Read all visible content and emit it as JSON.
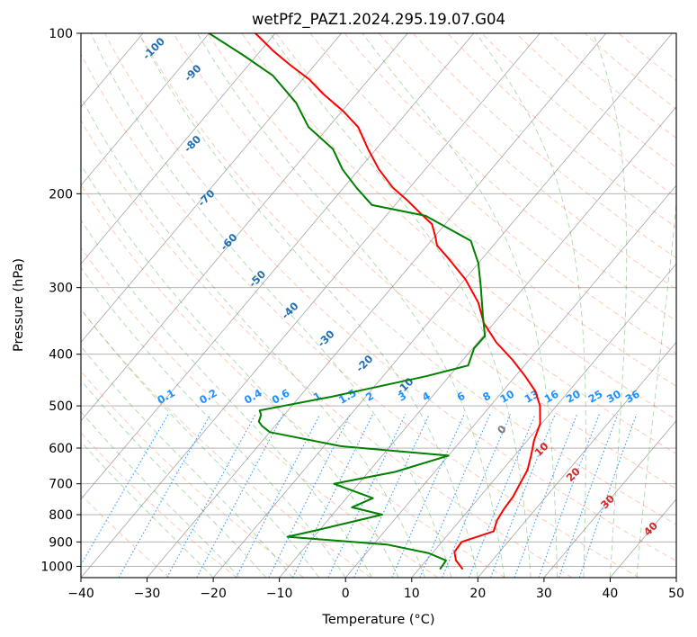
{
  "chart_data": {
    "type": "line",
    "title": "wetPf2_PAZ1.2024.295.19.07.G04",
    "xlabel": "Temperature (°C)",
    "ylabel": "Pressure (hPa)",
    "xlim": [
      -40,
      50
    ],
    "ylim": [
      1050,
      100
    ],
    "y_scale": "log",
    "skew": "skew-T log-p",
    "grid": true,
    "x_ticks": [
      "−40",
      "−30",
      "−20",
      "−10",
      "0",
      "10",
      "20",
      "30",
      "40",
      "50"
    ],
    "y_ticks": [
      "100",
      "200",
      "300",
      "400",
      "500",
      "600",
      "700",
      "800",
      "900",
      "1000"
    ],
    "colors": {
      "temperature": "#ff0000",
      "dewpoint": "#008000",
      "isotherm": "#888888",
      "dry_adiabat": "#ff7f50",
      "moist_adiabat": "#2ca02c",
      "mixing_ratio": "#1e90ff",
      "isentrope_labels": "#1f6fb4",
      "isobar": "#aaaaaa"
    },
    "series": [
      {
        "key": "temperature",
        "points": [
          [
            16.5,
            1010
          ],
          [
            14.5,
            975
          ],
          [
            13.2,
            940
          ],
          [
            13.0,
            900
          ],
          [
            16.5,
            860
          ],
          [
            15.6,
            820
          ],
          [
            15.2,
            780
          ],
          [
            15.0,
            740
          ],
          [
            14.4,
            700
          ],
          [
            13.8,
            660
          ],
          [
            12.5,
            620
          ],
          [
            11.0,
            580
          ],
          [
            9.8,
            540
          ],
          [
            7.5,
            500
          ],
          [
            5.0,
            470
          ],
          [
            1.5,
            440
          ],
          [
            -2.5,
            410
          ],
          [
            -7.2,
            380
          ],
          [
            -11.5,
            350
          ],
          [
            -15.0,
            320
          ],
          [
            -19.8,
            290
          ],
          [
            -25.0,
            265
          ],
          [
            -28.5,
            250
          ],
          [
            -30.0,
            240
          ],
          [
            -32.0,
            228
          ],
          [
            -35.0,
            218
          ],
          [
            -39.0,
            205
          ],
          [
            -42.5,
            195
          ],
          [
            -47.0,
            180
          ],
          [
            -51.2,
            165
          ],
          [
            -55.5,
            150
          ],
          [
            -59.8,
            140
          ],
          [
            -65.0,
            130
          ],
          [
            -69.0,
            122
          ],
          [
            -73.5,
            115
          ],
          [
            -78.0,
            108
          ],
          [
            -83.0,
            100
          ]
        ]
      },
      {
        "key": "dewpoint",
        "points": [
          [
            13.2,
            1010
          ],
          [
            13.0,
            975
          ],
          [
            9.5,
            945
          ],
          [
            2.0,
            910
          ],
          [
            -14.0,
            880
          ],
          [
            -10.3,
            855
          ],
          [
            -2.5,
            800
          ],
          [
            -8.0,
            775
          ],
          [
            -6.0,
            745
          ],
          [
            -13.7,
            700
          ],
          [
            -6.0,
            665
          ],
          [
            0.0,
            620
          ],
          [
            -17.5,
            595
          ],
          [
            -30.0,
            560
          ],
          [
            -32.0,
            545
          ],
          [
            -33.0,
            535
          ],
          [
            -33.5,
            520
          ],
          [
            -34.3,
            510
          ],
          [
            -25.0,
            480
          ],
          [
            -13.5,
            440
          ],
          [
            -8.5,
            420
          ],
          [
            -9.8,
            390
          ],
          [
            -9.7,
            370
          ],
          [
            -12.5,
            340
          ],
          [
            -16.5,
            300
          ],
          [
            -20.0,
            270
          ],
          [
            -24.0,
            245
          ],
          [
            -34.0,
            220
          ],
          [
            -43.5,
            210
          ],
          [
            -48.0,
            195
          ],
          [
            -52.5,
            180
          ],
          [
            -56.5,
            165
          ],
          [
            -63.0,
            150
          ],
          [
            -68.0,
            135
          ],
          [
            -75.0,
            120
          ],
          [
            -82.0,
            110
          ],
          [
            -90.0,
            100
          ]
        ]
      }
    ],
    "isentrope_labels": [
      "-100",
      "-90",
      "-80",
      "-70",
      "-60",
      "-50",
      "-40",
      "-30",
      "-20",
      "-10",
      "0",
      "10",
      "20",
      "30",
      "40"
    ],
    "mixing_ratio_labels": [
      "0.1",
      "0.2",
      "0.4",
      "0.6",
      "1",
      "1.5",
      "2",
      "3",
      "4",
      "6",
      "8",
      "10",
      "13",
      "16",
      "20",
      "25",
      "30",
      "36"
    ],
    "theta_e_labels": [
      "0",
      "10",
      "20",
      "30",
      "40"
    ]
  }
}
